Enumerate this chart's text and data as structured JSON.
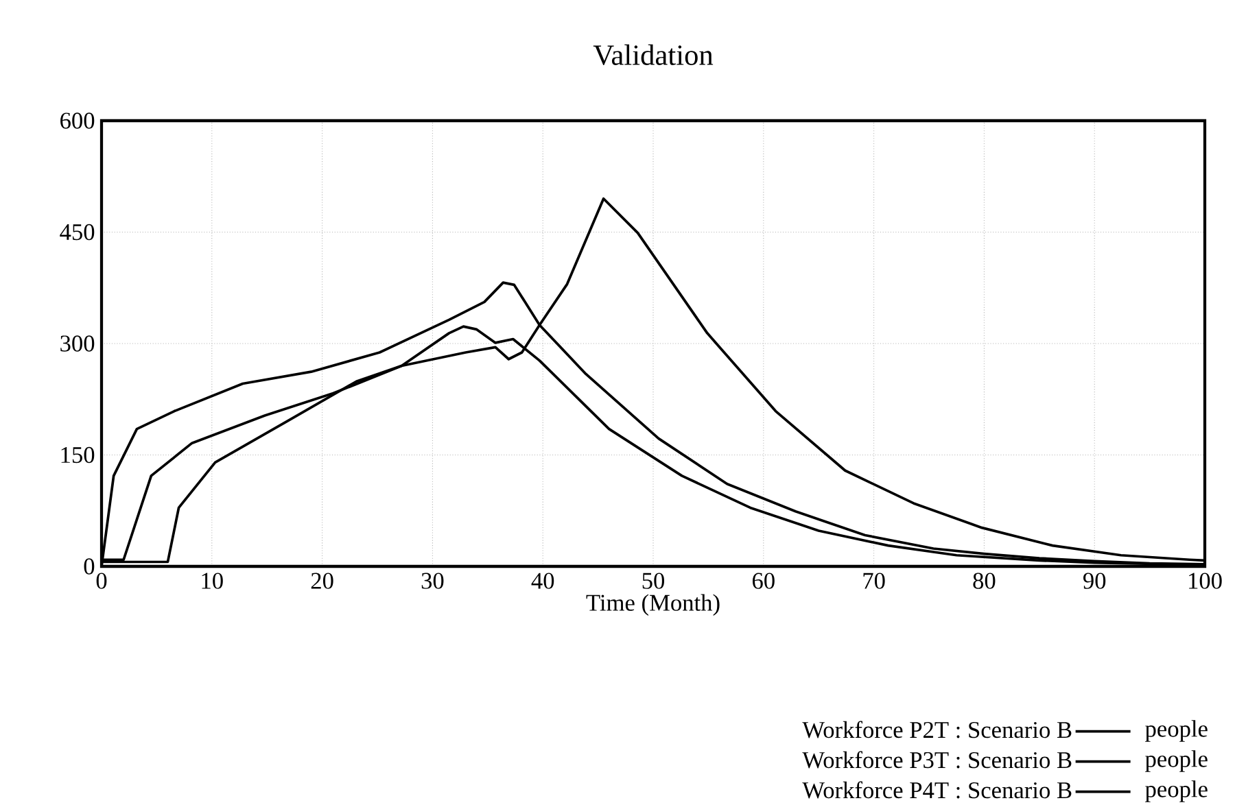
{
  "chart_data": {
    "type": "line",
    "title": "Validation",
    "xlabel": "Time (Month)",
    "xlim": [
      0,
      100
    ],
    "xticks": [
      0,
      10,
      20,
      30,
      40,
      50,
      60,
      70,
      80,
      90,
      100
    ],
    "ylim": [
      0,
      600
    ],
    "yticks": [
      0,
      150,
      300,
      450,
      600
    ],
    "grid": true,
    "legend": "bottom",
    "line_style": "solid",
    "annotations": [
      "people",
      "people",
      "people"
    ],
    "series": [
      {
        "name": "Workforce P2T : Scenario B",
        "color": "#000000",
        "x": [
          0,
          1.1,
          3.2,
          6.6,
          12.8,
          19,
          25.2,
          31.5,
          34.7,
          36.4,
          37.4,
          39.7,
          43.9,
          50.5,
          56.7,
          62.9,
          69.2,
          75.4,
          80,
          85,
          90,
          95,
          100
        ],
        "values": [
          0,
          122,
          185,
          209,
          246,
          262,
          288,
          332,
          356,
          382,
          379,
          325,
          259,
          172,
          111,
          74,
          42,
          24,
          17,
          11,
          7,
          4,
          3
        ]
      },
      {
        "name": "Workforce P3T : Scenario B",
        "color": "#000000",
        "x": [
          0,
          2,
          4.5,
          8.2,
          14.8,
          21,
          27.2,
          31.5,
          32.8,
          34,
          35.7,
          37.3,
          39.7,
          46,
          52.6,
          58.8,
          65,
          71.3,
          77.5,
          85,
          90,
          100
        ],
        "values": [
          9,
          9,
          122,
          166,
          203,
          233,
          270,
          314,
          323,
          319,
          301,
          306,
          277,
          185,
          122,
          79,
          48,
          28,
          15,
          8,
          5,
          2
        ]
      },
      {
        "name": "Workforce P4T : Scenario B",
        "color": "#000000",
        "x": [
          0,
          6,
          7,
          10.3,
          16.9,
          23.1,
          27.2,
          33,
          35.7,
          36.9,
          38.1,
          39.7,
          42.2,
          45.5,
          48.6,
          54.9,
          61.1,
          67.4,
          73.6,
          79.8,
          86.2,
          92.4,
          98.6,
          100
        ],
        "values": [
          6,
          6,
          79,
          140,
          196,
          249,
          270,
          288,
          295,
          279,
          288,
          325,
          380,
          495,
          449,
          314,
          209,
          129,
          85,
          52,
          28,
          15,
          9,
          8
        ]
      }
    ]
  }
}
